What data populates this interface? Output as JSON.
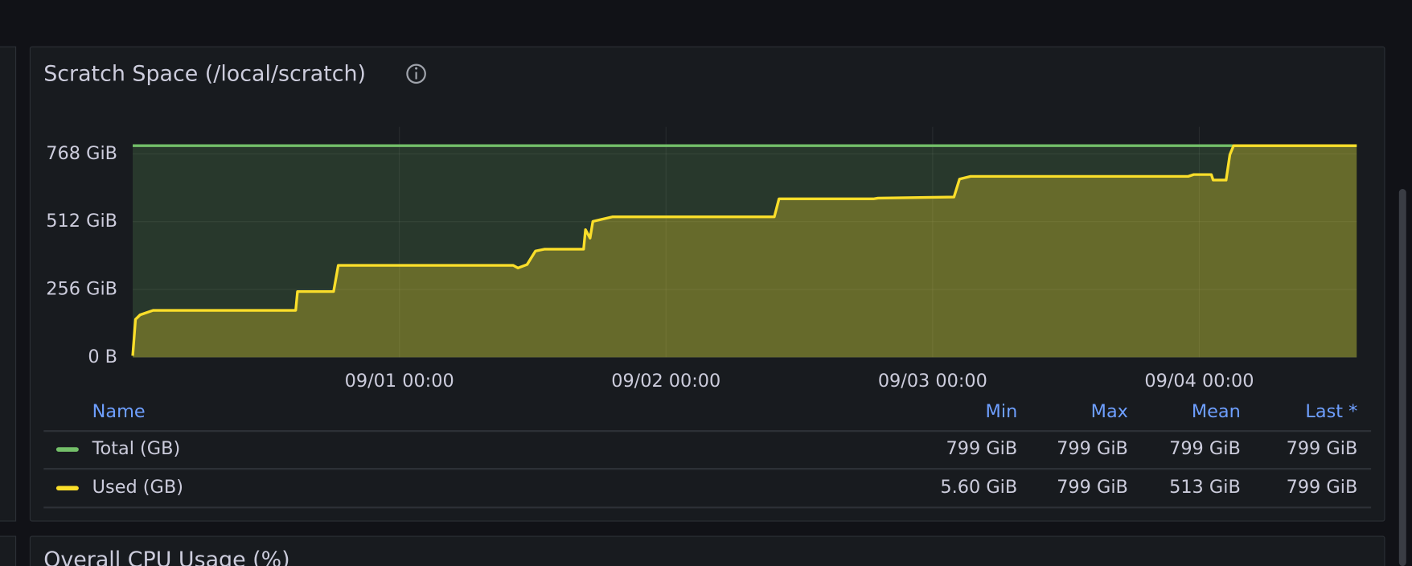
{
  "panel_title": "Scratch Space (/local/scratch)",
  "chart_data": {
    "type": "line",
    "x": [
      "08/31 00:00",
      "08/31 00:15",
      "08/31 00:40",
      "08/31 01:50",
      "08/31 14:40",
      "08/31 14:50",
      "08/31 18:05",
      "08/31 18:30",
      "09/01 10:15",
      "09/01 10:40",
      "09/01 11:30",
      "09/01 12:15",
      "09/01 13:05",
      "09/01 16:35",
      "09/01 16:45",
      "09/01 17:10",
      "09/01 17:25",
      "09/01 19:10",
      "09/02 09:45",
      "09/02 10:10",
      "09/02 18:40",
      "09/02 19:05",
      "09/03 01:55",
      "09/03 02:25",
      "09/03 03:25",
      "09/03 23:00",
      "09/03 23:30",
      "09/04 01:05",
      "09/04 01:15",
      "09/04 02:25",
      "09/04 02:45",
      "09/04 03:05",
      "09/04 14:10"
    ],
    "xlim": [
      "08/31 00:00",
      "09/04 14:10"
    ],
    "xticks": [
      "09/01 00:00",
      "09/02 00:00",
      "09/03 00:00",
      "09/04 00:00"
    ],
    "ylim": [
      0,
      870
    ],
    "yticks": [
      {
        "value": 0,
        "label": "0 B"
      },
      {
        "value": 256,
        "label": "256 GiB"
      },
      {
        "value": 512,
        "label": "512 GiB"
      },
      {
        "value": 768,
        "label": "768 GiB"
      }
    ],
    "grid": true,
    "series": [
      {
        "name": "Total (GB)",
        "color": "#73bf69",
        "values": [
          799,
          799,
          799,
          799,
          799,
          799,
          799,
          799,
          799,
          799,
          799,
          799,
          799,
          799,
          799,
          799,
          799,
          799,
          799,
          799,
          799,
          799,
          799,
          799,
          799,
          799,
          799,
          799,
          799,
          799,
          799,
          799,
          799
        ]
      },
      {
        "name": "Used (GB)",
        "color": "#fade2a",
        "values": [
          5.6,
          143,
          160,
          177,
          177,
          248,
          248,
          347,
          347,
          337,
          350,
          401,
          408,
          408,
          482,
          450,
          513,
          530,
          530,
          598,
          598,
          601,
          605,
          673,
          683,
          683,
          690,
          690,
          669,
          669,
          765,
          799,
          799
        ]
      }
    ],
    "legend_columns": [
      "Name",
      "Min",
      "Max",
      "Mean",
      "Last *"
    ],
    "legend_stats": [
      [
        "799 GiB",
        "799 GiB",
        "799 GiB",
        "799 GiB"
      ],
      [
        "5.60 GiB",
        "799 GiB",
        "513 GiB",
        "799 GiB"
      ]
    ]
  },
  "next_panel_title": "Overall CPU Usage (%)"
}
